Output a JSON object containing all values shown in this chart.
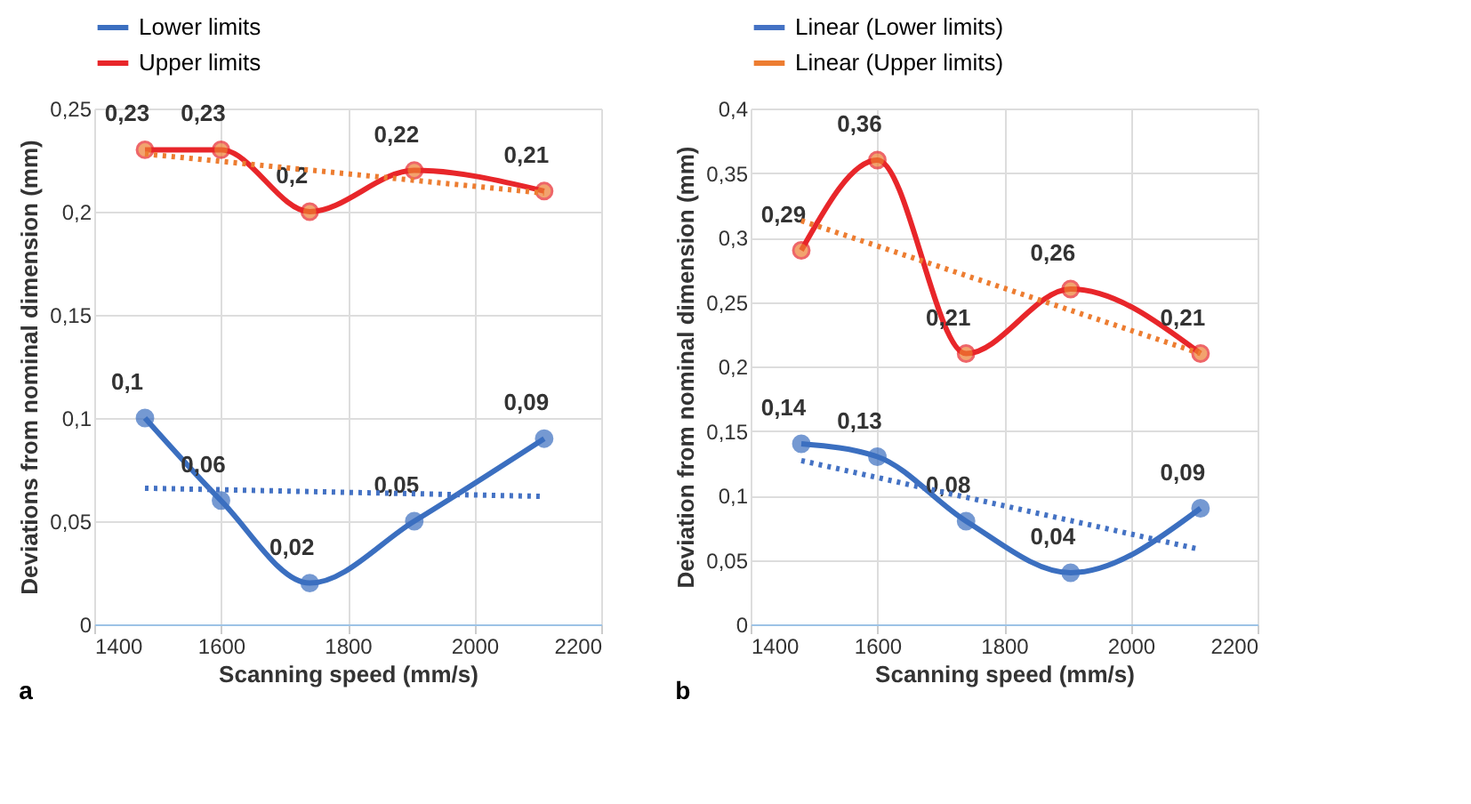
{
  "chart_data": [
    {
      "type": "line",
      "xlabel": "Scanning speed (mm/s)",
      "ylabel": "Deviations from nominal dimension (mm)",
      "annotations": [
        "a"
      ],
      "xlim": [
        1400,
        2200
      ],
      "xticks": [
        1400,
        1600,
        1800,
        2000,
        2200
      ],
      "ylim": [
        0,
        0.25
      ],
      "yticks": [
        {
          "value": 0,
          "label": "0"
        },
        {
          "value": 0.05,
          "label": "0,05"
        },
        {
          "value": 0.1,
          "label": "0,1"
        },
        {
          "value": 0.15,
          "label": "0,15"
        },
        {
          "value": 0.2,
          "label": "0,2"
        },
        {
          "value": 0.25,
          "label": "0,25"
        }
      ],
      "grid": true,
      "legend": "top",
      "marker": "circle",
      "series": [
        {
          "name": "Lower limits",
          "color": "#3b6fc0",
          "x": [
            1480,
            1600,
            1740,
            1905,
            2110
          ],
          "values": [
            0.1,
            0.06,
            0.02,
            0.05,
            0.09
          ],
          "value_labels": [
            "0,1",
            "0,06",
            "0,02",
            "0,05",
            "0,09"
          ]
        },
        {
          "name": "Upper limits",
          "color": "#e8262a",
          "x": [
            1480,
            1600,
            1740,
            1905,
            2110
          ],
          "values": [
            0.23,
            0.23,
            0.2,
            0.22,
            0.21
          ],
          "value_labels": [
            "0,23",
            "0,23",
            "0,2",
            "0,22",
            "0,21"
          ]
        },
        {
          "color": "#4472c4",
          "x": [
            1480,
            2110
          ],
          "values": [
            0.066,
            0.062
          ],
          "marker": "none",
          "line_style": "dotted"
        },
        {
          "color": "#ed7d31",
          "x": [
            1480,
            2110
          ],
          "values": [
            0.228,
            0.209
          ],
          "marker": "none",
          "line_style": "dotted"
        }
      ]
    },
    {
      "type": "line",
      "xlabel": "Scanning speed (mm/s)",
      "ylabel": "Deviation from nominal dimension (mm)",
      "annotations": [
        "b"
      ],
      "xlim": [
        1400,
        2200
      ],
      "xticks": [
        1400,
        1600,
        1800,
        2000,
        2200
      ],
      "ylim": [
        0,
        0.4
      ],
      "yticks": [
        {
          "value": 0,
          "label": "0"
        },
        {
          "value": 0.05,
          "label": "0,05"
        },
        {
          "value": 0.1,
          "label": "0,1"
        },
        {
          "value": 0.15,
          "label": "0,15"
        },
        {
          "value": 0.2,
          "label": "0,2"
        },
        {
          "value": 0.25,
          "label": "0,25"
        },
        {
          "value": 0.3,
          "label": "0,3"
        },
        {
          "value": 0.35,
          "label": "0,35"
        },
        {
          "value": 0.4,
          "label": "0,4"
        }
      ],
      "grid": true,
      "legend": "top",
      "marker": "circle",
      "series": [
        {
          "color": "#3b6fc0",
          "x": [
            1480,
            1600,
            1740,
            1905,
            2110
          ],
          "values": [
            0.14,
            0.13,
            0.08,
            0.04,
            0.09
          ],
          "value_labels": [
            "0,14",
            "0,13",
            "0,08",
            "0,04",
            "0,09"
          ]
        },
        {
          "color": "#e8262a",
          "x": [
            1480,
            1600,
            1740,
            1905,
            2110
          ],
          "values": [
            0.29,
            0.36,
            0.21,
            0.26,
            0.21
          ],
          "value_labels": [
            "0,29",
            "0,36",
            "0,21",
            "0,26",
            "0,21"
          ]
        },
        {
          "name": "Linear (Lower limits)",
          "color": "#4472c4",
          "x": [
            1480,
            2110
          ],
          "values": [
            0.127,
            0.058
          ],
          "marker": "none",
          "line_style": "dotted"
        },
        {
          "name": "Linear (Upper limits)",
          "color": "#ed7d31",
          "x": [
            1480,
            2110
          ],
          "values": [
            0.313,
            0.21
          ],
          "marker": "none",
          "line_style": "dotted"
        }
      ]
    }
  ]
}
